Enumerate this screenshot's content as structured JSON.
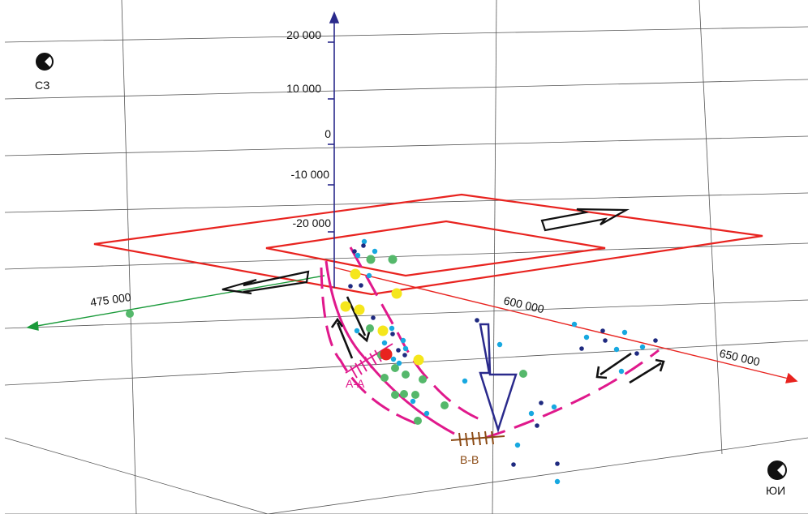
{
  "colors": {
    "vertical_axis": "#2a2a8c",
    "green_axis": "#1a9a3a",
    "red_axis": "#e8231f",
    "frame": "#e8231f",
    "fault": "#e0198c",
    "section_bb": "#8b4a14",
    "arrow_black": "#111111",
    "arrow_blue": "#2a2a8c",
    "dot_green": "#55b86b",
    "dot_cyan": "#17a8e0",
    "dot_navy": "#1f2a80",
    "dot_yellow": "#f5e61c",
    "dot_red": "#e8231f"
  },
  "axes": {
    "vertical_ticks": [
      "20 000",
      "10 000",
      "0",
      "-10 000",
      "-20 000"
    ],
    "horizontal_left_tick": "475 000",
    "horizontal_right_ticks": [
      "600 000",
      "650 000"
    ]
  },
  "corners": {
    "top_left": "СЗ",
    "bottom_right": "ЮИ"
  },
  "sections": {
    "aa": "А-А",
    "bb": "В-В"
  },
  "icons": [
    "hemisphere-icon",
    "hemisphere-icon"
  ]
}
